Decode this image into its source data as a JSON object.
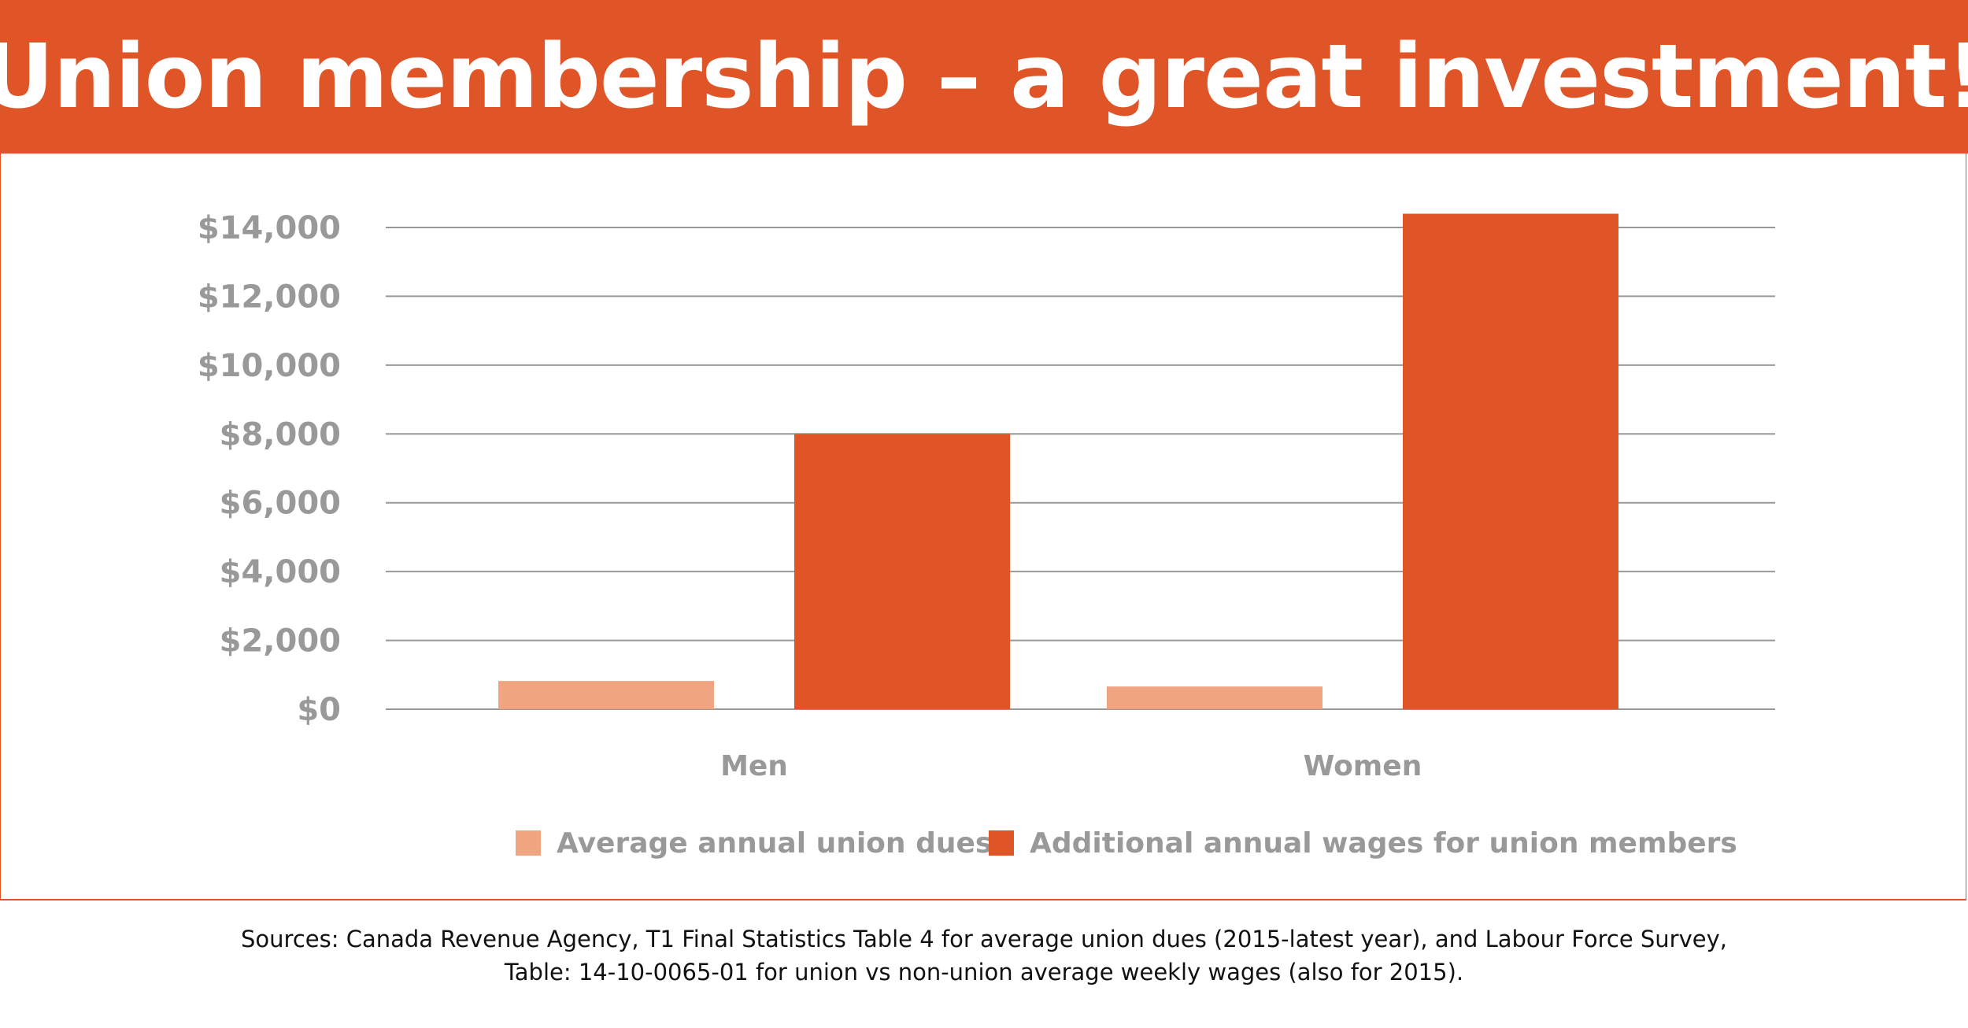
{
  "title": "Union membership – a great investment!",
  "colors": {
    "banner": "#E05527",
    "dues": "#F0A47F",
    "wages": "#E05527",
    "gridline": "#999999",
    "label": "#999999"
  },
  "chart_data": {
    "type": "bar",
    "categories": [
      "Men",
      "Women"
    ],
    "series": [
      {
        "name": "Average annual union dues",
        "values": [
          820,
          660
        ]
      },
      {
        "name": "Additional annual wages for union members",
        "values": [
          8000,
          14400
        ]
      }
    ],
    "yticks": [
      "$0",
      "$2,000",
      "$4,000",
      "$6,000",
      "$8,000",
      "$10,000",
      "$12,000",
      "$14,000"
    ],
    "ylim": [
      0,
      14000
    ],
    "ystep": 2000,
    "grid": true,
    "legend_position": "bottom"
  },
  "sources": {
    "line1": "Sources: Canada Revenue Agency, T1 Final Statistics Table 4 for average union dues (2015-latest year), and Labour Force Survey,",
    "line2": "Table: 14-10-0065-01 for union vs non-union average weekly wages (also for 2015)."
  }
}
